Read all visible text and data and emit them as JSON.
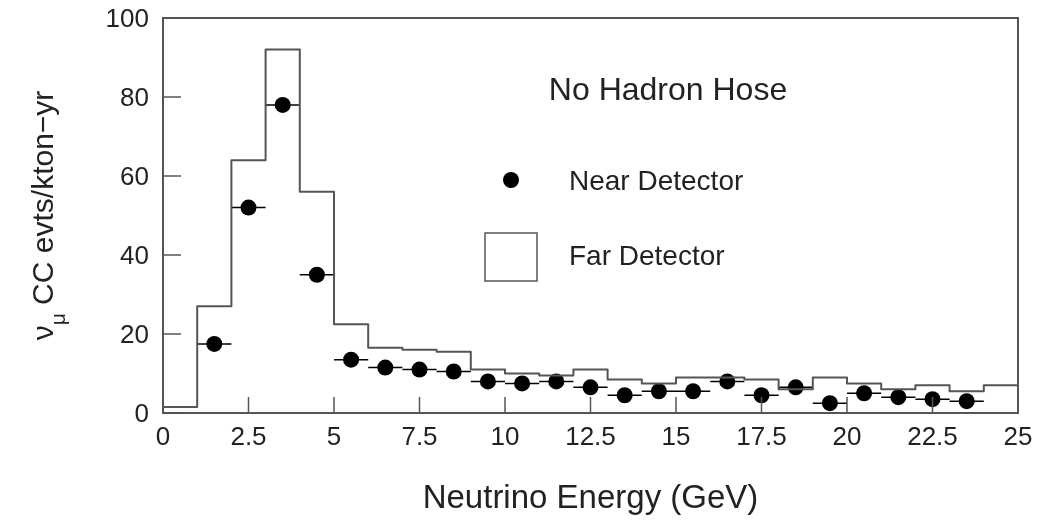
{
  "chart_data": {
    "type": "histogram",
    "title": "No Hadron Hose",
    "xlabel": "Neutrino Energy (GeV)",
    "ylabel": "ν$_{μ}$ CC evts/kton−yr",
    "xlim": [
      0,
      25
    ],
    "xticks": [
      0,
      2.5,
      5,
      7.5,
      10,
      12.5,
      15,
      17.5,
      20,
      22.5,
      25
    ],
    "ylim": [
      0,
      100
    ],
    "yticks": [
      0,
      20,
      40,
      60,
      80,
      100
    ],
    "grid": false,
    "legend": "right",
    "series": [
      {
        "name": "Near Detector",
        "type": "scatter",
        "color": "#000000",
        "marker": "circle",
        "x": [
          1.5,
          2.5,
          3.5,
          4.5,
          5.5,
          6.5,
          7.5,
          8.5,
          9.5,
          10.5,
          11.5,
          12.5,
          13.5,
          14.5,
          15.5,
          16.5,
          17.5,
          18.5,
          19.5,
          20.5,
          21.5,
          22.5,
          23.5
        ],
        "values": [
          17.5,
          52,
          78,
          35,
          13.5,
          11.5,
          11,
          10.5,
          8,
          7.5,
          8,
          6.5,
          4.5,
          5.5,
          5.5,
          8,
          4.5,
          6.5,
          2.5,
          5,
          4,
          3.5,
          3
        ],
        "xerrors": [
          0.5,
          0.5,
          0.5,
          0.5,
          0.5,
          0.5,
          0.5,
          0.5,
          0.5,
          0.5,
          0.5,
          0.5,
          0.5,
          0.5,
          0.5,
          0.5,
          0.5,
          0.5,
          0.5,
          0.5,
          0.5,
          0.5,
          0.5
        ]
      },
      {
        "name": "Far Detector",
        "color": "#555555",
        "bins": [
          0,
          1,
          2,
          3,
          4,
          5,
          6,
          7,
          8,
          9,
          10,
          11,
          12,
          13,
          14,
          15,
          16,
          17,
          18,
          19,
          20,
          21,
          22,
          23,
          24,
          25
        ],
        "values": [
          1.5,
          27,
          64,
          92,
          56,
          22.5,
          16.5,
          16,
          15.5,
          11,
          10,
          9.5,
          11,
          8.5,
          7.5,
          9,
          9,
          8.5,
          6,
          9,
          7.5,
          6,
          7,
          5.5,
          7
        ]
      }
    ]
  }
}
